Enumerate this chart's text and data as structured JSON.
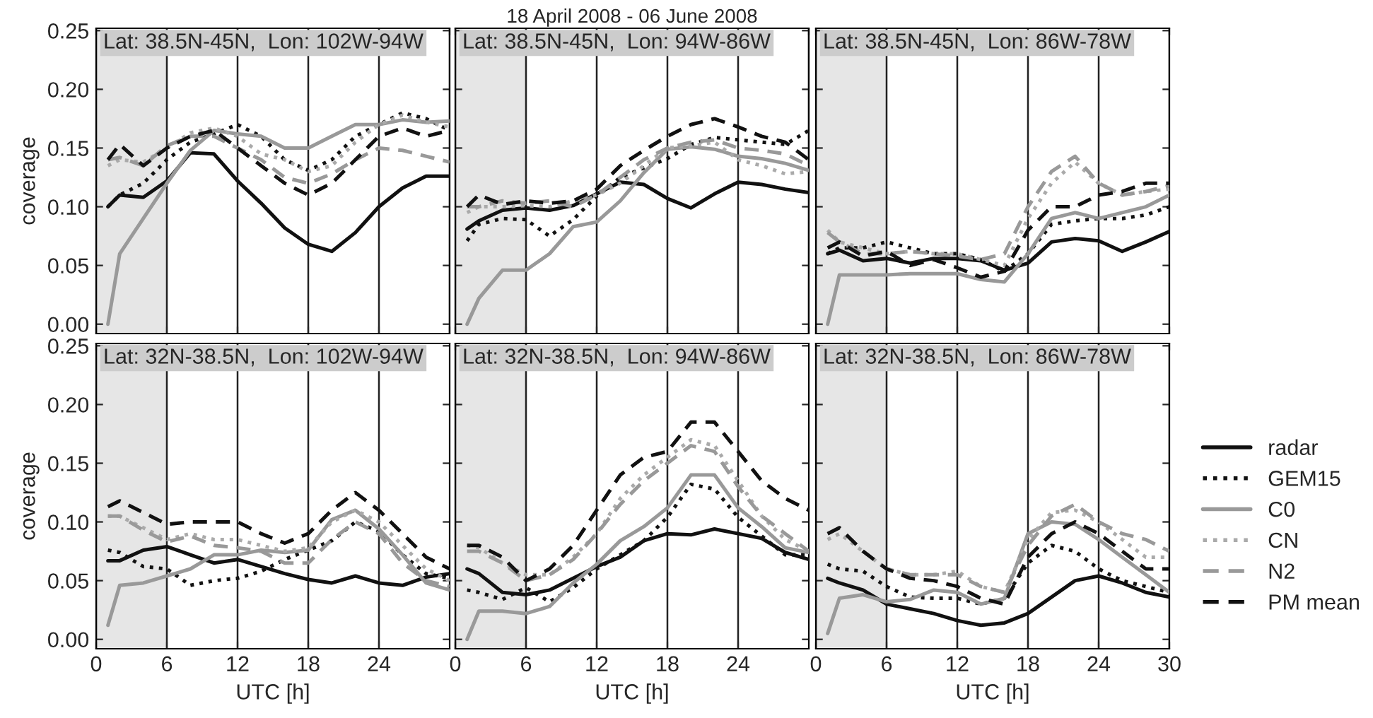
{
  "chart_data": [
    {
      "type": "line",
      "title": "Lat: 38.5N-45N,  Lon: 102W-94W",
      "ylabel": "coverage",
      "tick_labels": "y",
      "grid": "x",
      "x": [
        1,
        2,
        4,
        6,
        8,
        10,
        12,
        14,
        16,
        18,
        20,
        22,
        24,
        26,
        28,
        30
      ],
      "xlim": [
        0,
        30
      ],
      "xticks": [
        0,
        6,
        12,
        18,
        24,
        30
      ],
      "ylim": [
        -0.008,
        0.252
      ],
      "yticks": [
        {
          "value": 0,
          "label": "0.00"
        },
        {
          "value": 0.05,
          "label": "0.05"
        },
        {
          "value": 0.1,
          "label": "0.10"
        },
        {
          "value": 0.15,
          "label": "0.15"
        },
        {
          "value": 0.2,
          "label": "0.20"
        },
        {
          "value": 0.25,
          "label": "0.25"
        }
      ],
      "bands": [
        {
          "axis": "x",
          "from": 0,
          "to": 6,
          "color": "#e6e6e6"
        }
      ],
      "series": [
        {
          "color": "#111111",
          "line_style": "solid",
          "values": [
            0.1,
            0.11,
            0.108,
            0.122,
            0.146,
            0.145,
            0.122,
            0.103,
            0.082,
            0.068,
            0.062,
            0.078,
            0.1,
            0.116,
            0.126,
            0.126
          ]
        },
        {
          "color": "#111111",
          "line_style": "dotted",
          "values": [
            0.1,
            0.11,
            0.12,
            0.14,
            0.155,
            0.162,
            0.17,
            0.16,
            0.14,
            0.131,
            0.14,
            0.16,
            0.17,
            0.18,
            0.175,
            0.165
          ]
        },
        {
          "color": "#999999",
          "line_style": "solid",
          "values": [
            0.0,
            0.06,
            0.09,
            0.12,
            0.148,
            0.165,
            0.162,
            0.16,
            0.15,
            0.15,
            0.16,
            0.17,
            0.17,
            0.174,
            0.172,
            0.173
          ]
        },
        {
          "color": "#aaaaaa",
          "line_style": "dotted",
          "values": [
            0.135,
            0.14,
            0.138,
            0.15,
            0.163,
            0.167,
            0.16,
            0.145,
            0.14,
            0.13,
            0.135,
            0.155,
            0.17,
            0.178,
            0.172,
            0.168
          ]
        },
        {
          "color": "#999999",
          "line_style": "dashed",
          "values": [
            0.14,
            0.142,
            0.135,
            0.152,
            0.16,
            0.16,
            0.15,
            0.14,
            0.125,
            0.12,
            0.128,
            0.14,
            0.15,
            0.148,
            0.143,
            0.138
          ]
        },
        {
          "color": "#111111",
          "line_style": "dashed",
          "values": [
            0.14,
            0.153,
            0.135,
            0.15,
            0.16,
            0.165,
            0.15,
            0.135,
            0.12,
            0.11,
            0.12,
            0.14,
            0.16,
            0.167,
            0.16,
            0.165
          ]
        }
      ]
    },
    {
      "type": "line",
      "title": "Lat: 38.5N-45N,  Lon: 94W-86W",
      "tick_labels": false,
      "grid": "x",
      "annotations": [
        "18 April 2008 - 06 June 2008"
      ],
      "x": [
        1,
        2,
        4,
        6,
        8,
        10,
        12,
        14,
        16,
        18,
        20,
        22,
        24,
        26,
        28,
        30
      ],
      "xlim": [
        0,
        30
      ],
      "xticks": [
        0,
        6,
        12,
        18,
        24,
        30
      ],
      "ylim": [
        -0.008,
        0.252
      ],
      "yticks": [
        0,
        0.05,
        0.1,
        0.15,
        0.2,
        0.25
      ],
      "bands": [
        {
          "axis": "x",
          "from": 0,
          "to": 6,
          "color": "#e6e6e6"
        }
      ],
      "series": [
        {
          "color": "#111111",
          "line_style": "solid",
          "values": [
            0.081,
            0.088,
            0.097,
            0.099,
            0.097,
            0.101,
            0.111,
            0.121,
            0.119,
            0.107,
            0.099,
            0.111,
            0.121,
            0.119,
            0.115,
            0.112
          ]
        },
        {
          "color": "#111111",
          "line_style": "dotted",
          "values": [
            0.071,
            0.085,
            0.09,
            0.089,
            0.075,
            0.089,
            0.109,
            0.125,
            0.133,
            0.141,
            0.153,
            0.159,
            0.157,
            0.155,
            0.153,
            0.165
          ]
        },
        {
          "color": "#999999",
          "line_style": "solid",
          "values": [
            0.0,
            0.022,
            0.046,
            0.046,
            0.06,
            0.083,
            0.087,
            0.105,
            0.129,
            0.149,
            0.151,
            0.149,
            0.143,
            0.141,
            0.137,
            0.131
          ]
        },
        {
          "color": "#aaaaaa",
          "line_style": "dotted",
          "values": [
            0.095,
            0.1,
            0.1,
            0.101,
            0.1,
            0.105,
            0.11,
            0.12,
            0.135,
            0.15,
            0.152,
            0.155,
            0.14,
            0.135,
            0.128,
            0.13
          ]
        },
        {
          "color": "#999999",
          "line_style": "dashed",
          "values": [
            0.1,
            0.1,
            0.105,
            0.103,
            0.105,
            0.1,
            0.11,
            0.125,
            0.14,
            0.15,
            0.155,
            0.157,
            0.15,
            0.148,
            0.145,
            0.135
          ]
        },
        {
          "color": "#111111",
          "line_style": "dashed",
          "values": [
            0.1,
            0.11,
            0.102,
            0.105,
            0.103,
            0.105,
            0.115,
            0.135,
            0.148,
            0.16,
            0.17,
            0.175,
            0.168,
            0.16,
            0.155,
            0.14
          ]
        }
      ]
    },
    {
      "type": "line",
      "title": "Lat: 38.5N-45N,  Lon: 86W-78W",
      "tick_labels": false,
      "grid": "x",
      "x": [
        1,
        2,
        4,
        6,
        8,
        10,
        12,
        14,
        16,
        18,
        20,
        22,
        24,
        26,
        28,
        30
      ],
      "xlim": [
        0,
        30
      ],
      "xticks": [
        0,
        6,
        12,
        18,
        24,
        30
      ],
      "ylim": [
        -0.008,
        0.252
      ],
      "yticks": [
        0,
        0.05,
        0.1,
        0.15,
        0.2,
        0.25
      ],
      "bands": [
        {
          "axis": "x",
          "from": 0,
          "to": 6,
          "color": "#e6e6e6"
        }
      ],
      "series": [
        {
          "color": "#111111",
          "line_style": "solid",
          "values": [
            0.06,
            0.063,
            0.054,
            0.056,
            0.052,
            0.056,
            0.056,
            0.054,
            0.046,
            0.052,
            0.07,
            0.073,
            0.071,
            0.062,
            0.07,
            0.079
          ]
        },
        {
          "color": "#111111",
          "line_style": "dotted",
          "values": [
            0.06,
            0.065,
            0.065,
            0.07,
            0.065,
            0.06,
            0.06,
            0.055,
            0.045,
            0.06,
            0.085,
            0.088,
            0.09,
            0.09,
            0.093,
            0.1
          ]
        },
        {
          "color": "#999999",
          "line_style": "solid",
          "values": [
            0.0,
            0.042,
            0.042,
            0.042,
            0.043,
            0.043,
            0.043,
            0.038,
            0.036,
            0.06,
            0.09,
            0.095,
            0.09,
            0.095,
            0.1,
            0.11
          ]
        },
        {
          "color": "#aaaaaa",
          "line_style": "dotted",
          "values": [
            0.08,
            0.07,
            0.065,
            0.06,
            0.062,
            0.06,
            0.06,
            0.055,
            0.05,
            0.09,
            0.12,
            0.138,
            0.12,
            0.11,
            0.113,
            0.115
          ]
        },
        {
          "color": "#999999",
          "line_style": "dashed",
          "values": [
            0.078,
            0.07,
            0.06,
            0.06,
            0.062,
            0.06,
            0.058,
            0.055,
            0.06,
            0.1,
            0.13,
            0.143,
            0.12,
            0.11,
            0.113,
            0.118
          ]
        },
        {
          "color": "#111111",
          "line_style": "dashed",
          "values": [
            0.065,
            0.07,
            0.058,
            0.062,
            0.05,
            0.055,
            0.048,
            0.04,
            0.045,
            0.08,
            0.1,
            0.1,
            0.11,
            0.113,
            0.12,
            0.12
          ]
        }
      ]
    },
    {
      "type": "line",
      "title": "Lat: 32N-38.5N,  Lon: 102W-94W",
      "ylabel": "coverage",
      "xlabel": "UTC [h]",
      "grid": "x",
      "x": [
        1,
        2,
        4,
        6,
        8,
        10,
        12,
        14,
        16,
        18,
        20,
        22,
        24,
        26,
        28,
        30
      ],
      "xlim": [
        0,
        30
      ],
      "xticks": [
        0,
        6,
        12,
        18,
        24
      ],
      "ylim": [
        -0.008,
        0.252
      ],
      "yticks": [
        {
          "value": 0,
          "label": "0.00"
        },
        {
          "value": 0.05,
          "label": "0.05"
        },
        {
          "value": 0.1,
          "label": "0.10"
        },
        {
          "value": 0.15,
          "label": "0.15"
        },
        {
          "value": 0.2,
          "label": "0.20"
        },
        {
          "value": 0.25,
          "label": "0.25"
        }
      ],
      "bands": [
        {
          "axis": "x",
          "from": 0,
          "to": 6,
          "color": "#e6e6e6"
        }
      ],
      "series": [
        {
          "color": "#111111",
          "line_style": "solid",
          "values": [
            0.067,
            0.067,
            0.076,
            0.079,
            0.072,
            0.065,
            0.068,
            0.062,
            0.056,
            0.051,
            0.048,
            0.054,
            0.048,
            0.046,
            0.053,
            0.056
          ]
        },
        {
          "color": "#111111",
          "line_style": "dotted",
          "values": [
            0.076,
            0.074,
            0.062,
            0.06,
            0.046,
            0.05,
            0.052,
            0.058,
            0.068,
            0.076,
            0.084,
            0.1,
            0.092,
            0.072,
            0.056,
            0.052
          ]
        },
        {
          "color": "#999999",
          "line_style": "solid",
          "values": [
            0.012,
            0.046,
            0.048,
            0.054,
            0.06,
            0.072,
            0.072,
            0.076,
            0.074,
            0.076,
            0.102,
            0.11,
            0.094,
            0.072,
            0.048,
            0.042
          ]
        },
        {
          "color": "#aaaaaa",
          "line_style": "dotted",
          "values": [
            0.105,
            0.105,
            0.095,
            0.085,
            0.09,
            0.085,
            0.085,
            0.08,
            0.075,
            0.078,
            0.1,
            0.11,
            0.1,
            0.08,
            0.06,
            0.05
          ]
        },
        {
          "color": "#999999",
          "line_style": "dashed",
          "values": [
            0.105,
            0.105,
            0.093,
            0.083,
            0.088,
            0.08,
            0.078,
            0.075,
            0.065,
            0.065,
            0.085,
            0.1,
            0.09,
            0.065,
            0.05,
            0.045
          ]
        },
        {
          "color": "#111111",
          "line_style": "dashed",
          "values": [
            0.113,
            0.118,
            0.108,
            0.098,
            0.1,
            0.1,
            0.1,
            0.09,
            0.082,
            0.09,
            0.11,
            0.125,
            0.11,
            0.09,
            0.07,
            0.06
          ]
        }
      ]
    },
    {
      "type": "line",
      "title": "Lat: 32N-38.5N,  Lon: 94W-86W",
      "xlabel": "UTC [h]",
      "tick_labels": "x",
      "grid": "x",
      "x": [
        1,
        2,
        4,
        6,
        8,
        10,
        12,
        14,
        16,
        18,
        20,
        22,
        24,
        26,
        28,
        30
      ],
      "xlim": [
        0,
        30
      ],
      "xticks": [
        0,
        6,
        12,
        18,
        24
      ],
      "ylim": [
        -0.008,
        0.252
      ],
      "yticks": [
        0,
        0.05,
        0.1,
        0.15,
        0.2,
        0.25
      ],
      "bands": [
        {
          "axis": "x",
          "from": 0,
          "to": 6,
          "color": "#e6e6e6"
        }
      ],
      "series": [
        {
          "color": "#111111",
          "line_style": "solid",
          "values": [
            0.06,
            0.056,
            0.04,
            0.038,
            0.042,
            0.052,
            0.062,
            0.07,
            0.084,
            0.09,
            0.089,
            0.094,
            0.09,
            0.086,
            0.074,
            0.068
          ]
        },
        {
          "color": "#111111",
          "line_style": "dotted",
          "values": [
            0.042,
            0.04,
            0.034,
            0.044,
            0.032,
            0.044,
            0.06,
            0.072,
            0.084,
            0.104,
            0.132,
            0.128,
            0.104,
            0.088,
            0.072,
            0.072
          ]
        },
        {
          "color": "#999999",
          "line_style": "solid",
          "values": [
            0.0,
            0.024,
            0.024,
            0.022,
            0.028,
            0.048,
            0.064,
            0.084,
            0.096,
            0.112,
            0.14,
            0.14,
            0.112,
            0.096,
            0.078,
            0.074
          ]
        },
        {
          "color": "#aaaaaa",
          "line_style": "dotted",
          "values": [
            0.08,
            0.078,
            0.065,
            0.055,
            0.055,
            0.07,
            0.09,
            0.12,
            0.14,
            0.155,
            0.17,
            0.165,
            0.135,
            0.105,
            0.085,
            0.075
          ]
        },
        {
          "color": "#999999",
          "line_style": "dashed",
          "values": [
            0.075,
            0.075,
            0.065,
            0.05,
            0.055,
            0.068,
            0.09,
            0.115,
            0.135,
            0.15,
            0.165,
            0.16,
            0.13,
            0.105,
            0.09,
            0.075
          ]
        },
        {
          "color": "#111111",
          "line_style": "dashed",
          "values": [
            0.08,
            0.08,
            0.07,
            0.05,
            0.06,
            0.08,
            0.11,
            0.14,
            0.155,
            0.16,
            0.185,
            0.185,
            0.16,
            0.135,
            0.12,
            0.11
          ]
        }
      ]
    },
    {
      "type": "line",
      "title": "Lat: 32N-38.5N,  Lon: 86W-78W",
      "xlabel": "UTC [h]",
      "tick_labels": "x",
      "grid": "x",
      "legend": "right",
      "x": [
        1,
        2,
        4,
        6,
        8,
        10,
        12,
        14,
        16,
        18,
        20,
        22,
        24,
        26,
        28,
        30
      ],
      "xlim": [
        0,
        30
      ],
      "xticks": [
        0,
        6,
        12,
        18,
        24,
        30
      ],
      "ylim": [
        -0.008,
        0.252
      ],
      "yticks": [
        0,
        0.05,
        0.1,
        0.15,
        0.2,
        0.25
      ],
      "bands": [
        {
          "axis": "x",
          "from": 0,
          "to": 6,
          "color": "#e6e6e6"
        }
      ],
      "series": [
        {
          "name": "radar",
          "color": "#111111",
          "line_style": "solid",
          "values": [
            0.052,
            0.048,
            0.042,
            0.03,
            0.026,
            0.022,
            0.016,
            0.012,
            0.014,
            0.022,
            0.036,
            0.05,
            0.054,
            0.048,
            0.04,
            0.036
          ]
        },
        {
          "name": "GEM15",
          "color": "#111111",
          "line_style": "dotted",
          "values": [
            0.064,
            0.06,
            0.058,
            0.045,
            0.036,
            0.035,
            0.035,
            0.03,
            0.035,
            0.065,
            0.08,
            0.075,
            0.06,
            0.05,
            0.045,
            0.04
          ]
        },
        {
          "name": "C0",
          "color": "#999999",
          "line_style": "solid",
          "values": [
            0.005,
            0.035,
            0.038,
            0.032,
            0.034,
            0.042,
            0.04,
            0.03,
            0.035,
            0.09,
            0.1,
            0.098,
            0.085,
            0.07,
            0.055,
            0.04
          ]
        },
        {
          "name": "CN",
          "color": "#aaaaaa",
          "line_style": "dotted",
          "values": [
            0.085,
            0.09,
            0.075,
            0.06,
            0.055,
            0.055,
            0.058,
            0.045,
            0.04,
            0.085,
            0.108,
            0.11,
            0.1,
            0.085,
            0.07,
            0.07
          ]
        },
        {
          "name": "N2",
          "color": "#999999",
          "line_style": "dashed",
          "values": [
            0.09,
            0.095,
            0.075,
            0.06,
            0.055,
            0.055,
            0.055,
            0.045,
            0.04,
            0.08,
            0.105,
            0.115,
            0.1,
            0.09,
            0.085,
            0.075
          ]
        },
        {
          "name": "PM mean",
          "color": "#111111",
          "line_style": "dashed",
          "values": [
            0.09,
            0.095,
            0.075,
            0.06,
            0.052,
            0.05,
            0.045,
            0.035,
            0.03,
            0.07,
            0.09,
            0.1,
            0.09,
            0.075,
            0.06,
            0.06
          ]
        }
      ]
    }
  ]
}
